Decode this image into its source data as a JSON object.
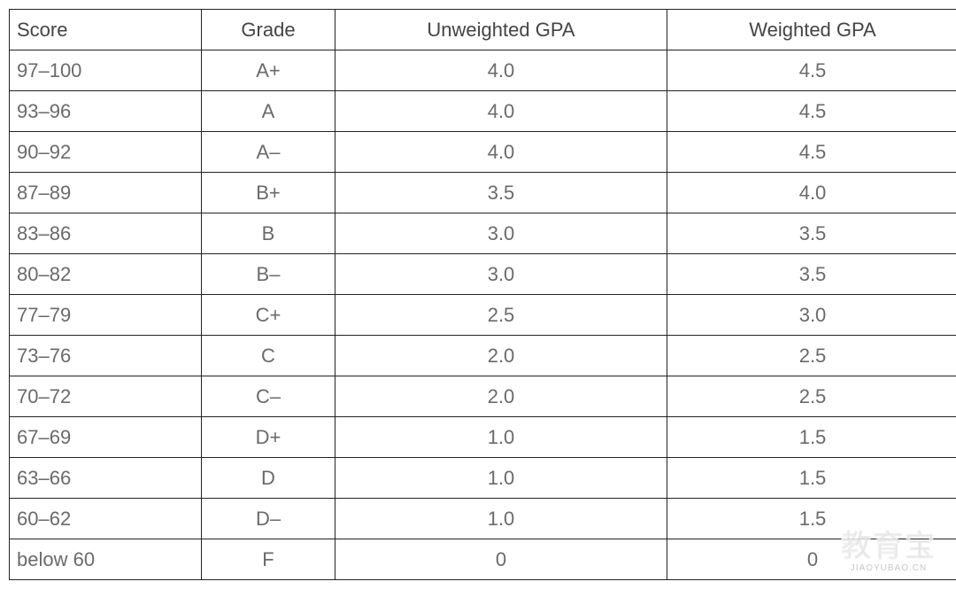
{
  "table": {
    "headers": {
      "score": "Score",
      "grade": "Grade",
      "unweighted": "Unweighted GPA",
      "weighted": "Weighted GPA"
    },
    "rows": [
      {
        "score": "97–100",
        "grade": "A+",
        "unweighted": "4.0",
        "weighted": "4.5"
      },
      {
        "score": "93–96",
        "grade": "A",
        "unweighted": "4.0",
        "weighted": "4.5"
      },
      {
        "score": "90–92",
        "grade": "A–",
        "unweighted": "4.0",
        "weighted": "4.5"
      },
      {
        "score": "87–89",
        "grade": "B+",
        "unweighted": "3.5",
        "weighted": "4.0"
      },
      {
        "score": "83–86",
        "grade": "B",
        "unweighted": "3.0",
        "weighted": "3.5"
      },
      {
        "score": "80–82",
        "grade": "B–",
        "unweighted": "3.0",
        "weighted": "3.5"
      },
      {
        "score": "77–79",
        "grade": "C+",
        "unweighted": "2.5",
        "weighted": "3.0"
      },
      {
        "score": "73–76",
        "grade": "C",
        "unweighted": "2.0",
        "weighted": "2.5"
      },
      {
        "score": "70–72",
        "grade": "C–",
        "unweighted": "2.0",
        "weighted": "2.5"
      },
      {
        "score": "67–69",
        "grade": "D+",
        "unweighted": "1.0",
        "weighted": "1.5"
      },
      {
        "score": "63–66",
        "grade": "D",
        "unweighted": "1.0",
        "weighted": "1.5"
      },
      {
        "score": "60–62",
        "grade": "D–",
        "unweighted": "1.0",
        "weighted": "1.5"
      },
      {
        "score": "below 60",
        "grade": "F",
        "unweighted": "0",
        "weighted": "0"
      }
    ]
  },
  "watermark": {
    "text_cn": "教育宝",
    "text_en": "JIAOYUBAO.CN"
  },
  "colors": {
    "border": "#222222",
    "header_text": "#444444",
    "cell_text": "#6a6a6a",
    "background": "#ffffff"
  }
}
